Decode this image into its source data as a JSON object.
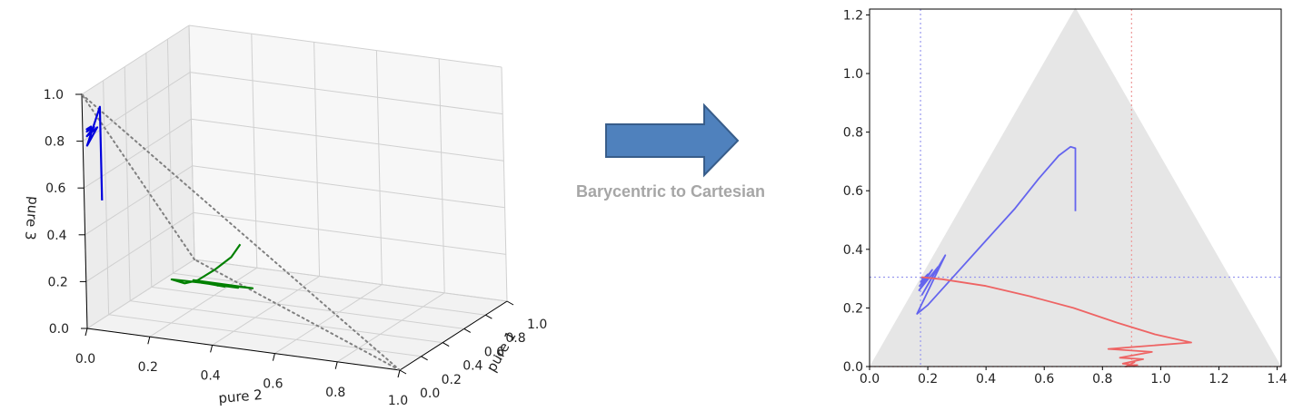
{
  "arrow": {
    "caption": "Barycentric to Cartesian",
    "fill": "#4f81bd",
    "stroke": "#385d8a"
  },
  "chart_data": [
    {
      "type": "line",
      "projection": "3d",
      "axes": {
        "x": {
          "label": "pure 2",
          "ticks": [
            "0.0",
            "0.2",
            "0.4",
            "0.6",
            "0.8",
            "1.0"
          ]
        },
        "y": {
          "label": "pure 1",
          "ticks": [
            "0.0",
            "0.2",
            "0.4",
            "0.6",
            "0.8",
            "1.0"
          ]
        },
        "z": {
          "label": "pure 3",
          "ticks": [
            "0.0",
            "0.2",
            "0.4",
            "0.6",
            "0.8",
            "1.0"
          ]
        }
      },
      "grid": true,
      "simplex_edges": {
        "style": "dotted",
        "color": "#808080"
      },
      "series": [
        {
          "color": "#0000dd",
          "points": [
            [
              0.05,
              0.02,
              0.55
            ],
            [
              0.05,
              0.02,
              0.95
            ],
            [
              0.01,
              0.01,
              0.78
            ],
            [
              0.04,
              0.02,
              0.86
            ],
            [
              0.01,
              0.01,
              0.82
            ],
            [
              0.03,
              0.02,
              0.86
            ],
            [
              0.01,
              0.01,
              0.84
            ],
            [
              0.02,
              0.02,
              0.86
            ],
            [
              0.01,
              0.01,
              0.85
            ],
            [
              0.02,
              0.01,
              0.86
            ]
          ]
        },
        {
          "color": "#008000",
          "points": [
            [
              0.48,
              0.05,
              0.43
            ],
            [
              0.45,
              0.05,
              0.37
            ],
            [
              0.37,
              0.13,
              0.28
            ],
            [
              0.27,
              0.25,
              0.18
            ],
            [
              0.18,
              0.39,
              0.11
            ],
            [
              0.1,
              0.5,
              0.08
            ],
            [
              0.38,
              0.44,
              0.11
            ],
            [
              0.18,
              0.47,
              0.1
            ],
            [
              0.33,
              0.45,
              0.1
            ],
            [
              0.2,
              0.48,
              0.09
            ],
            [
              0.3,
              0.46,
              0.1
            ],
            [
              0.22,
              0.48,
              0.09
            ],
            [
              0.28,
              0.47,
              0.09
            ],
            [
              0.24,
              0.48,
              0.09
            ],
            [
              0.26,
              0.47,
              0.09
            ]
          ]
        }
      ]
    },
    {
      "type": "line",
      "xlim": [
        0,
        1.414
      ],
      "ylim": [
        0,
        1.22
      ],
      "xticks": [
        "0.0",
        "0.2",
        "0.4",
        "0.6",
        "0.8",
        "1.0",
        "1.2",
        "1.4"
      ],
      "yticks": [
        "0.0",
        "0.2",
        "0.4",
        "0.6",
        "0.8",
        "1.0",
        "1.2"
      ],
      "triangle": {
        "vertices": [
          [
            0,
            0
          ],
          [
            1.414,
            0
          ],
          [
            0.707,
            1.225
          ]
        ],
        "color": "#e6e6e6"
      },
      "reference_lines": [
        {
          "orientation": "vertical",
          "value": 0.175,
          "color": "#9999ee"
        },
        {
          "orientation": "vertical",
          "value": 0.9,
          "color": "#ee9999"
        },
        {
          "orientation": "horizontal",
          "value": 0.305,
          "color": "#9999ee"
        },
        {
          "orientation": "horizontal",
          "value": 0.0,
          "color": "#ee9999"
        }
      ],
      "series": [
        {
          "color": "#6464ee",
          "points": [
            [
              0.707,
              0.53
            ],
            [
              0.707,
              0.745
            ],
            [
              0.69,
              0.75
            ],
            [
              0.65,
              0.72
            ],
            [
              0.58,
              0.64
            ],
            [
              0.5,
              0.54
            ],
            [
              0.4,
              0.43
            ],
            [
              0.3,
              0.32
            ],
            [
              0.2,
              0.21
            ],
            [
              0.163,
              0.18
            ],
            [
              0.26,
              0.38
            ],
            [
              0.18,
              0.245
            ],
            [
              0.235,
              0.34
            ],
            [
              0.17,
              0.26
            ],
            [
              0.215,
              0.33
            ],
            [
              0.172,
              0.275
            ],
            [
              0.2,
              0.315
            ],
            [
              0.176,
              0.29
            ],
            [
              0.19,
              0.305
            ],
            [
              0.178,
              0.3
            ]
          ]
        },
        {
          "color": "#ee6464",
          "points": [
            [
              0.178,
              0.305
            ],
            [
              0.25,
              0.298
            ],
            [
              0.4,
              0.275
            ],
            [
              0.55,
              0.24
            ],
            [
              0.7,
              0.2
            ],
            [
              0.85,
              0.15
            ],
            [
              0.98,
              0.11
            ],
            [
              1.105,
              0.082
            ],
            [
              0.82,
              0.06
            ],
            [
              0.97,
              0.05
            ],
            [
              0.86,
              0.03
            ],
            [
              0.94,
              0.025
            ],
            [
              0.87,
              0.01
            ],
            [
              0.92,
              0.005
            ],
            [
              0.88,
              0.0
            ],
            [
              0.91,
              0.015
            ],
            [
              0.89,
              0.005
            ],
            [
              0.9,
              0.01
            ]
          ]
        }
      ]
    }
  ]
}
